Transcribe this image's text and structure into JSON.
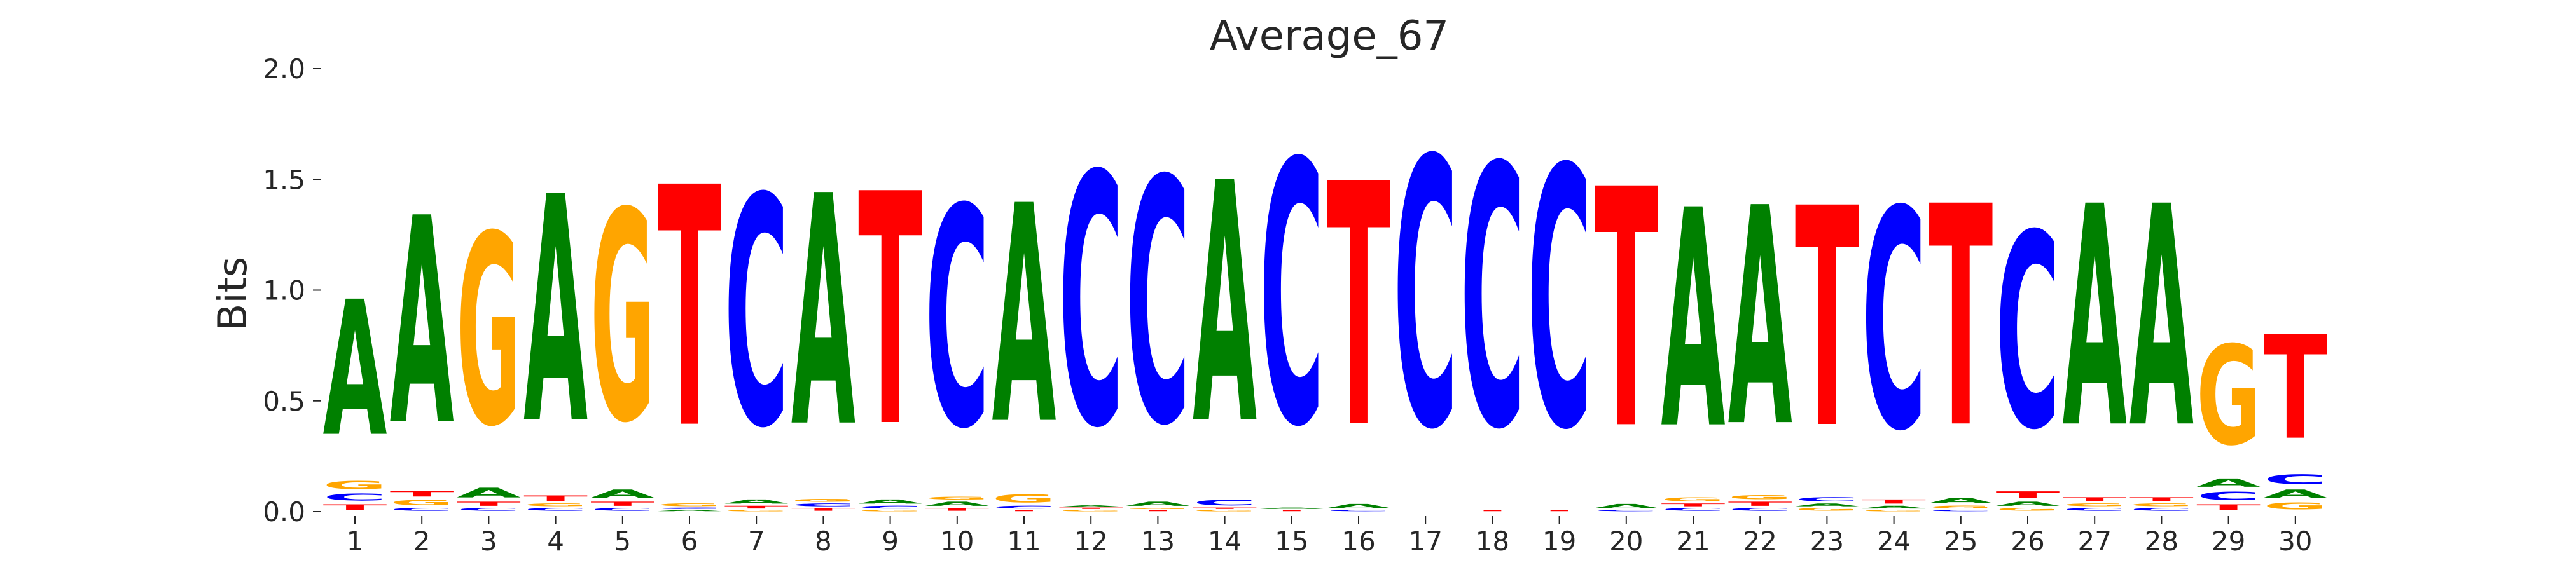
{
  "chart_data": {
    "type": "sequence-logo",
    "title": "Average_67",
    "ylabel": "Bits",
    "xlabel": "",
    "ylim": [
      0,
      2.0
    ],
    "yticks": [
      "0.0",
      "0.5",
      "1.0",
      "1.5",
      "2.0"
    ],
    "grid": false,
    "colors": {
      "A": "#008000",
      "C": "#0000ff",
      "G": "#ffa500",
      "T": "#ff0000"
    },
    "positions": [
      {
        "label": "1",
        "letters": [
          [
            "T",
            0.04
          ],
          [
            "C",
            0.05
          ],
          [
            "G",
            0.06
          ],
          [
            "A",
            0.98
          ]
        ]
      },
      {
        "label": "2",
        "letters": [
          [
            "C",
            0.02
          ],
          [
            "G",
            0.04
          ],
          [
            "T",
            0.04
          ],
          [
            "A",
            1.5
          ]
        ]
      },
      {
        "label": "3",
        "letters": [
          [
            "C",
            0.02
          ],
          [
            "T",
            0.03
          ],
          [
            "A",
            0.07
          ],
          [
            "G",
            1.38
          ]
        ]
      },
      {
        "label": "4",
        "letters": [
          [
            "C",
            0.02
          ],
          [
            "G",
            0.02
          ],
          [
            "T",
            0.04
          ],
          [
            "A",
            1.64
          ]
        ]
      },
      {
        "label": "5",
        "letters": [
          [
            "C",
            0.02
          ],
          [
            "T",
            0.03
          ],
          [
            "A",
            0.06
          ],
          [
            "G",
            1.52
          ]
        ]
      },
      {
        "label": "6",
        "letters": [
          [
            "A",
            0.01
          ],
          [
            "C",
            0.01
          ],
          [
            "G",
            0.02
          ],
          [
            "T",
            1.74
          ]
        ]
      },
      {
        "label": "7",
        "letters": [
          [
            "G",
            0.01
          ],
          [
            "T",
            0.02
          ],
          [
            "A",
            0.03
          ],
          [
            "C",
            1.66
          ]
        ]
      },
      {
        "label": "8",
        "letters": [
          [
            "T",
            0.02
          ],
          [
            "C",
            0.02
          ],
          [
            "G",
            0.02
          ],
          [
            "A",
            1.67
          ]
        ]
      },
      {
        "label": "9",
        "letters": [
          [
            "G",
            0.01
          ],
          [
            "C",
            0.02
          ],
          [
            "A",
            0.03
          ],
          [
            "T",
            1.68
          ]
        ]
      },
      {
        "label": "10",
        "letters": [
          [
            "T",
            0.02
          ],
          [
            "A",
            0.03
          ],
          [
            "G",
            0.02
          ],
          [
            "C",
            1.59
          ]
        ]
      },
      {
        "label": "11",
        "letters": [
          [
            "T",
            0.01
          ],
          [
            "C",
            0.02
          ],
          [
            "G",
            0.06
          ],
          [
            "A",
            1.58
          ]
        ]
      },
      {
        "label": "12",
        "letters": [
          [
            "G",
            0.01
          ],
          [
            "T",
            0.01
          ],
          [
            "A",
            0.01
          ],
          [
            "C",
            1.82
          ]
        ]
      },
      {
        "label": "13",
        "letters": [
          [
            "T",
            0.01
          ],
          [
            "G",
            0.01
          ],
          [
            "A",
            0.03
          ],
          [
            "C",
            1.77
          ]
        ]
      },
      {
        "label": "14",
        "letters": [
          [
            "G",
            0.01
          ],
          [
            "T",
            0.01
          ],
          [
            "C",
            0.04
          ],
          [
            "A",
            1.74
          ]
        ]
      },
      {
        "label": "15",
        "letters": [
          [
            "T",
            0.01
          ],
          [
            "A",
            0.01
          ],
          [
            "C",
            1.9
          ]
        ]
      },
      {
        "label": "16",
        "letters": [
          [
            "C",
            0.01
          ],
          [
            "A",
            0.03
          ],
          [
            "T",
            1.76
          ]
        ]
      },
      {
        "label": "17",
        "letters": [
          [
            "C",
            1.94
          ]
        ]
      },
      {
        "label": "18",
        "letters": [
          [
            "T",
            0.01
          ],
          [
            "C",
            1.89
          ]
        ]
      },
      {
        "label": "19",
        "letters": [
          [
            "T",
            0.01
          ],
          [
            "C",
            1.88
          ]
        ]
      },
      {
        "label": "20",
        "letters": [
          [
            "C",
            0.01
          ],
          [
            "A",
            0.03
          ],
          [
            "T",
            1.73
          ]
        ]
      },
      {
        "label": "21",
        "letters": [
          [
            "C",
            0.02
          ],
          [
            "T",
            0.02
          ],
          [
            "G",
            0.03
          ],
          [
            "A",
            1.58
          ]
        ]
      },
      {
        "label": "22",
        "letters": [
          [
            "C",
            0.02
          ],
          [
            "T",
            0.03
          ],
          [
            "G",
            0.03
          ],
          [
            "A",
            1.58
          ]
        ]
      },
      {
        "label": "23",
        "letters": [
          [
            "G",
            0.02
          ],
          [
            "A",
            0.02
          ],
          [
            "C",
            0.03
          ],
          [
            "T",
            1.59
          ]
        ]
      },
      {
        "label": "24",
        "letters": [
          [
            "G",
            0.01
          ],
          [
            "A",
            0.02
          ],
          [
            "T",
            0.03
          ],
          [
            "C",
            1.59
          ]
        ]
      },
      {
        "label": "25",
        "letters": [
          [
            "C",
            0.01
          ],
          [
            "G",
            0.02
          ],
          [
            "A",
            0.04
          ],
          [
            "T",
            1.6
          ]
        ]
      },
      {
        "label": "26",
        "letters": [
          [
            "G",
            0.02
          ],
          [
            "A",
            0.03
          ],
          [
            "T",
            0.05
          ],
          [
            "C",
            1.41
          ]
        ]
      },
      {
        "label": "27",
        "letters": [
          [
            "C",
            0.02
          ],
          [
            "G",
            0.02
          ],
          [
            "T",
            0.03
          ],
          [
            "A",
            1.6
          ]
        ]
      },
      {
        "label": "28",
        "letters": [
          [
            "C",
            0.02
          ],
          [
            "G",
            0.02
          ],
          [
            "T",
            0.03
          ],
          [
            "A",
            1.6
          ]
        ]
      },
      {
        "label": "29",
        "letters": [
          [
            "T",
            0.04
          ],
          [
            "C",
            0.06
          ],
          [
            "A",
            0.06
          ],
          [
            "G",
            0.72
          ]
        ]
      },
      {
        "label": "30",
        "letters": [
          [
            "G",
            0.05
          ],
          [
            "A",
            0.06
          ],
          [
            "C",
            0.07
          ],
          [
            "T",
            0.75
          ]
        ]
      }
    ]
  }
}
